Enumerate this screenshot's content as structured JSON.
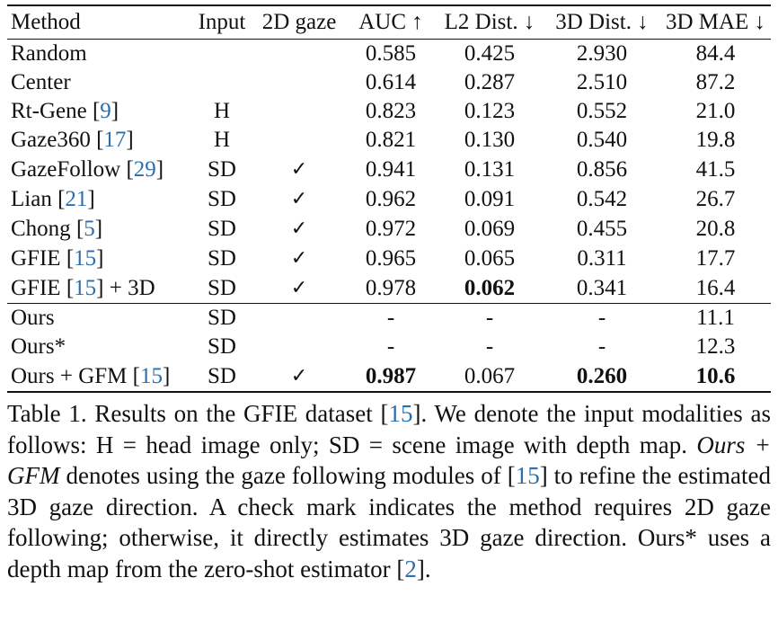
{
  "table": {
    "headers": [
      "Method",
      "Input",
      "2D gaze",
      "AUC ↑",
      "L2 Dist. ↓",
      "3D Dist. ↓",
      "3D MAE ↓"
    ],
    "check_symbol": "✓",
    "rows": [
      {
        "method": "Random",
        "ref": "",
        "suffix": "",
        "input": "",
        "gaze2d": false,
        "auc": "0.585",
        "l2": "0.425",
        "dist3d": "2.930",
        "mae": "84.4",
        "bold": []
      },
      {
        "method": "Center",
        "ref": "",
        "suffix": "",
        "input": "",
        "gaze2d": false,
        "auc": "0.614",
        "l2": "0.287",
        "dist3d": "2.510",
        "mae": "87.2",
        "bold": []
      },
      {
        "method": "Rt-Gene",
        "ref": "9",
        "suffix": "",
        "input": "H",
        "gaze2d": false,
        "auc": "0.823",
        "l2": "0.123",
        "dist3d": "0.552",
        "mae": "21.0",
        "bold": []
      },
      {
        "method": "Gaze360",
        "ref": "17",
        "suffix": "",
        "input": "H",
        "gaze2d": false,
        "auc": "0.821",
        "l2": "0.130",
        "dist3d": "0.540",
        "mae": "19.8",
        "bold": []
      },
      {
        "method": "GazeFollow",
        "ref": "29",
        "suffix": "",
        "input": "SD",
        "gaze2d": true,
        "auc": "0.941",
        "l2": "0.131",
        "dist3d": "0.856",
        "mae": "41.5",
        "bold": []
      },
      {
        "method": "Lian",
        "ref": "21",
        "suffix": "",
        "input": "SD",
        "gaze2d": true,
        "auc": "0.962",
        "l2": "0.091",
        "dist3d": "0.542",
        "mae": "26.7",
        "bold": []
      },
      {
        "method": "Chong",
        "ref": "5",
        "suffix": "",
        "input": "SD",
        "gaze2d": true,
        "auc": "0.972",
        "l2": "0.069",
        "dist3d": "0.455",
        "mae": "20.8",
        "bold": []
      },
      {
        "method": "GFIE",
        "ref": "15",
        "suffix": "",
        "input": "SD",
        "gaze2d": true,
        "auc": "0.965",
        "l2": "0.065",
        "dist3d": "0.311",
        "mae": "17.7",
        "bold": []
      },
      {
        "method": "GFIE",
        "ref": "15",
        "suffix": " + 3D",
        "input": "SD",
        "gaze2d": true,
        "auc": "0.978",
        "l2": "0.062",
        "dist3d": "0.341",
        "mae": "16.4",
        "bold": [
          "l2"
        ],
        "group_end": true
      },
      {
        "method": "Ours",
        "ref": "",
        "suffix": "",
        "input": "SD",
        "gaze2d": false,
        "auc": "-",
        "l2": "-",
        "dist3d": "-",
        "mae": "11.1",
        "bold": []
      },
      {
        "method": "Ours*",
        "ref": "",
        "suffix": "",
        "input": "SD",
        "gaze2d": false,
        "auc": "-",
        "l2": "-",
        "dist3d": "-",
        "mae": "12.3",
        "bold": []
      },
      {
        "method": "Ours + GFM",
        "ref": "15",
        "suffix": "",
        "input": "SD",
        "gaze2d": true,
        "auc": "0.987",
        "l2": "0.067",
        "dist3d": "0.260",
        "mae": "10.6",
        "bold": [
          "auc",
          "dist3d",
          "mae"
        ]
      }
    ]
  },
  "caption": {
    "p1": "Table 1.  Results on the GFIE dataset [",
    "r1": "15",
    "p2": "].  We denote the input modalities as follows:  H = head image only; SD = scene image with depth map. ",
    "ital": "Ours + GFM",
    "p3": " denotes using the gaze following modules of [",
    "r2": "15",
    "p4": "] to refine the estimated 3D gaze direction. A check mark indicates the method requires 2D gaze following; otherwise, it directly estimates 3D gaze direction. Ours* uses a depth map from the zero-shot estimator [",
    "r3": "2",
    "p5": "]."
  }
}
